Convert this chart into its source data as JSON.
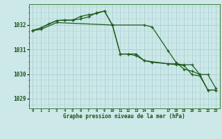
{
  "title": "Graphe pression niveau de la mer (hPa)",
  "background_color": "#cce8e8",
  "grid_color": "#aacfcf",
  "line_color": "#1e5c1e",
  "xlim": [
    -0.5,
    23.5
  ],
  "ylim": [
    1028.6,
    1032.85
  ],
  "yticks": [
    1029,
    1030,
    1031,
    1032
  ],
  "xtick_labels": [
    "0",
    "1",
    "2",
    "3",
    "4",
    "5",
    "6",
    "7",
    "8",
    "9",
    "10",
    "11",
    "12",
    "13",
    "14",
    "15",
    "",
    "17",
    "18",
    "19",
    "20",
    "21",
    "22",
    "23"
  ],
  "series1_x": [
    0,
    1,
    2,
    3,
    4,
    5,
    6,
    7,
    8,
    9,
    10,
    11,
    12,
    13,
    14,
    15,
    17,
    18,
    19,
    20,
    21,
    22,
    23
  ],
  "series1_y": [
    1031.78,
    1031.88,
    1032.05,
    1032.18,
    1032.2,
    1032.2,
    1032.25,
    1032.33,
    1032.5,
    1032.57,
    1032.0,
    1030.82,
    1030.82,
    1030.82,
    1030.55,
    1030.48,
    1030.42,
    1030.42,
    1030.38,
    1030.38,
    1029.98,
    1029.98,
    1029.42
  ],
  "series2_x": [
    0,
    1,
    3,
    4,
    5,
    6,
    7,
    8,
    9,
    10,
    11,
    12,
    13,
    14,
    17,
    18,
    19,
    20,
    21,
    22,
    23
  ],
  "series2_y": [
    1031.78,
    1031.88,
    1032.18,
    1032.2,
    1032.2,
    1032.35,
    1032.42,
    1032.47,
    1032.57,
    1032.0,
    1030.82,
    1030.82,
    1030.75,
    1030.55,
    1030.42,
    1030.38,
    1030.35,
    1029.98,
    1029.92,
    1029.35,
    1029.35
  ],
  "series3_x": [
    0,
    1,
    3,
    10,
    14,
    15,
    17,
    18,
    19,
    20,
    21,
    22,
    23
  ],
  "series3_y": [
    1031.78,
    1031.82,
    1032.1,
    1032.0,
    1032.0,
    1031.92,
    1030.95,
    1030.48,
    1030.2,
    1030.12,
    1029.98,
    1029.35,
    1029.35
  ]
}
